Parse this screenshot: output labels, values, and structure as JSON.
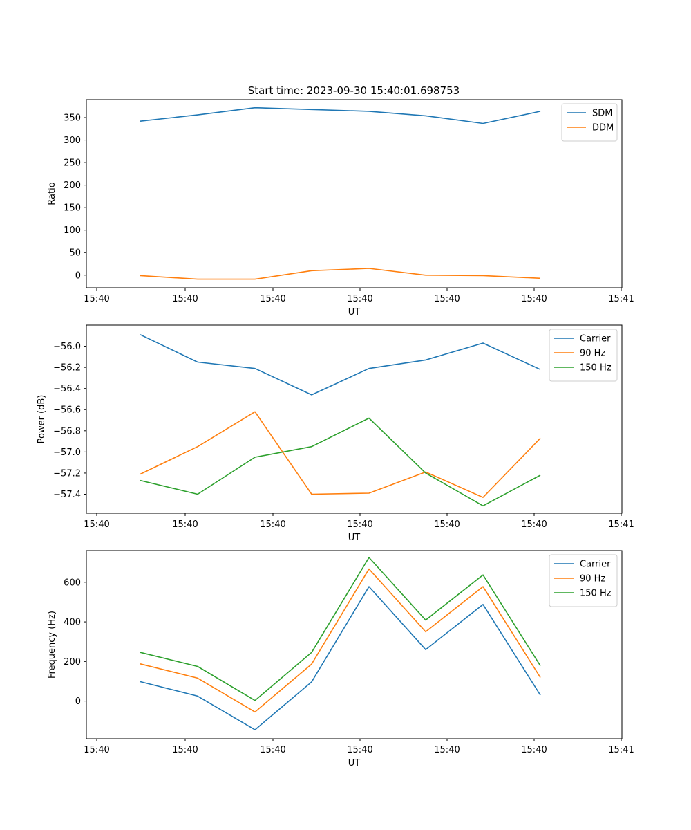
{
  "figure": {
    "title": "Start time: 2023-09-30 15:40:01.698753"
  },
  "chart_data": [
    {
      "type": "line",
      "title": "Start time: 2023-09-30 15:40:01.698753",
      "xlabel": "UT",
      "ylabel": "Ratio",
      "x_tick_labels": [
        "15:40",
        "15:40",
        "15:40",
        "15:40",
        "15:40",
        "15:40",
        "15:41"
      ],
      "y_ticks": [
        0,
        50,
        100,
        150,
        200,
        250,
        300,
        350
      ],
      "y_tick_labels": [
        "0",
        "50",
        "100",
        "150",
        "200",
        "250",
        "300",
        "350"
      ],
      "ylim": [
        -28,
        390
      ],
      "legend_position": "top-right",
      "series": [
        {
          "name": "SDM",
          "color": "#1f77b4",
          "values": [
            342,
            356,
            372,
            368,
            364,
            354,
            337,
            364
          ]
        },
        {
          "name": "DDM",
          "color": "#ff7f0e",
          "values": [
            -1,
            -9,
            -9,
            10,
            15,
            0,
            -1,
            -7
          ]
        }
      ]
    },
    {
      "type": "line",
      "title": "",
      "xlabel": "UT",
      "ylabel": "Power (dB)",
      "x_tick_labels": [
        "15:40",
        "15:40",
        "15:40",
        "15:40",
        "15:40",
        "15:40",
        "15:41"
      ],
      "y_ticks": [
        -57.4,
        -57.2,
        -57.0,
        -56.8,
        -56.6,
        -56.4,
        -56.2,
        -56.0
      ],
      "y_tick_labels": [
        "−57.4",
        "−57.2",
        "−57.0",
        "−56.8",
        "−56.6",
        "−56.4",
        "−56.2",
        "−56.0"
      ],
      "ylim": [
        -57.58,
        -55.8
      ],
      "legend_position": "top-right",
      "series": [
        {
          "name": "Carrier",
          "color": "#1f77b4",
          "values": [
            -55.89,
            -56.15,
            -56.21,
            -56.46,
            -56.21,
            -56.13,
            -55.97,
            -56.22
          ]
        },
        {
          "name": "90 Hz",
          "color": "#ff7f0e",
          "values": [
            -57.21,
            -56.95,
            -56.62,
            -57.4,
            -57.39,
            -57.19,
            -57.43,
            -56.87
          ]
        },
        {
          "name": "150 Hz",
          "color": "#2ca02c",
          "values": [
            -57.27,
            -57.4,
            -57.05,
            -56.95,
            -56.68,
            -57.2,
            -57.51,
            -57.22
          ]
        }
      ]
    },
    {
      "type": "line",
      "title": "",
      "xlabel": "UT",
      "ylabel": "Frequency (Hz)",
      "x_tick_labels": [
        "15:40",
        "15:40",
        "15:40",
        "15:40",
        "15:40",
        "15:40",
        "15:41"
      ],
      "y_ticks": [
        0,
        200,
        400,
        600
      ],
      "y_tick_labels": [
        "0",
        "200",
        "400",
        "600"
      ],
      "ylim": [
        -190,
        760
      ],
      "legend_position": "top-right",
      "series": [
        {
          "name": "Carrier",
          "color": "#1f77b4",
          "values": [
            98,
            25,
            -145,
            97,
            578,
            260,
            488,
            30
          ]
        },
        {
          "name": "90 Hz",
          "color": "#ff7f0e",
          "values": [
            188,
            116,
            -55,
            187,
            667,
            350,
            578,
            119
          ]
        },
        {
          "name": "150 Hz",
          "color": "#2ca02c",
          "values": [
            246,
            175,
            3,
            246,
            725,
            409,
            637,
            178
          ]
        }
      ]
    }
  ]
}
